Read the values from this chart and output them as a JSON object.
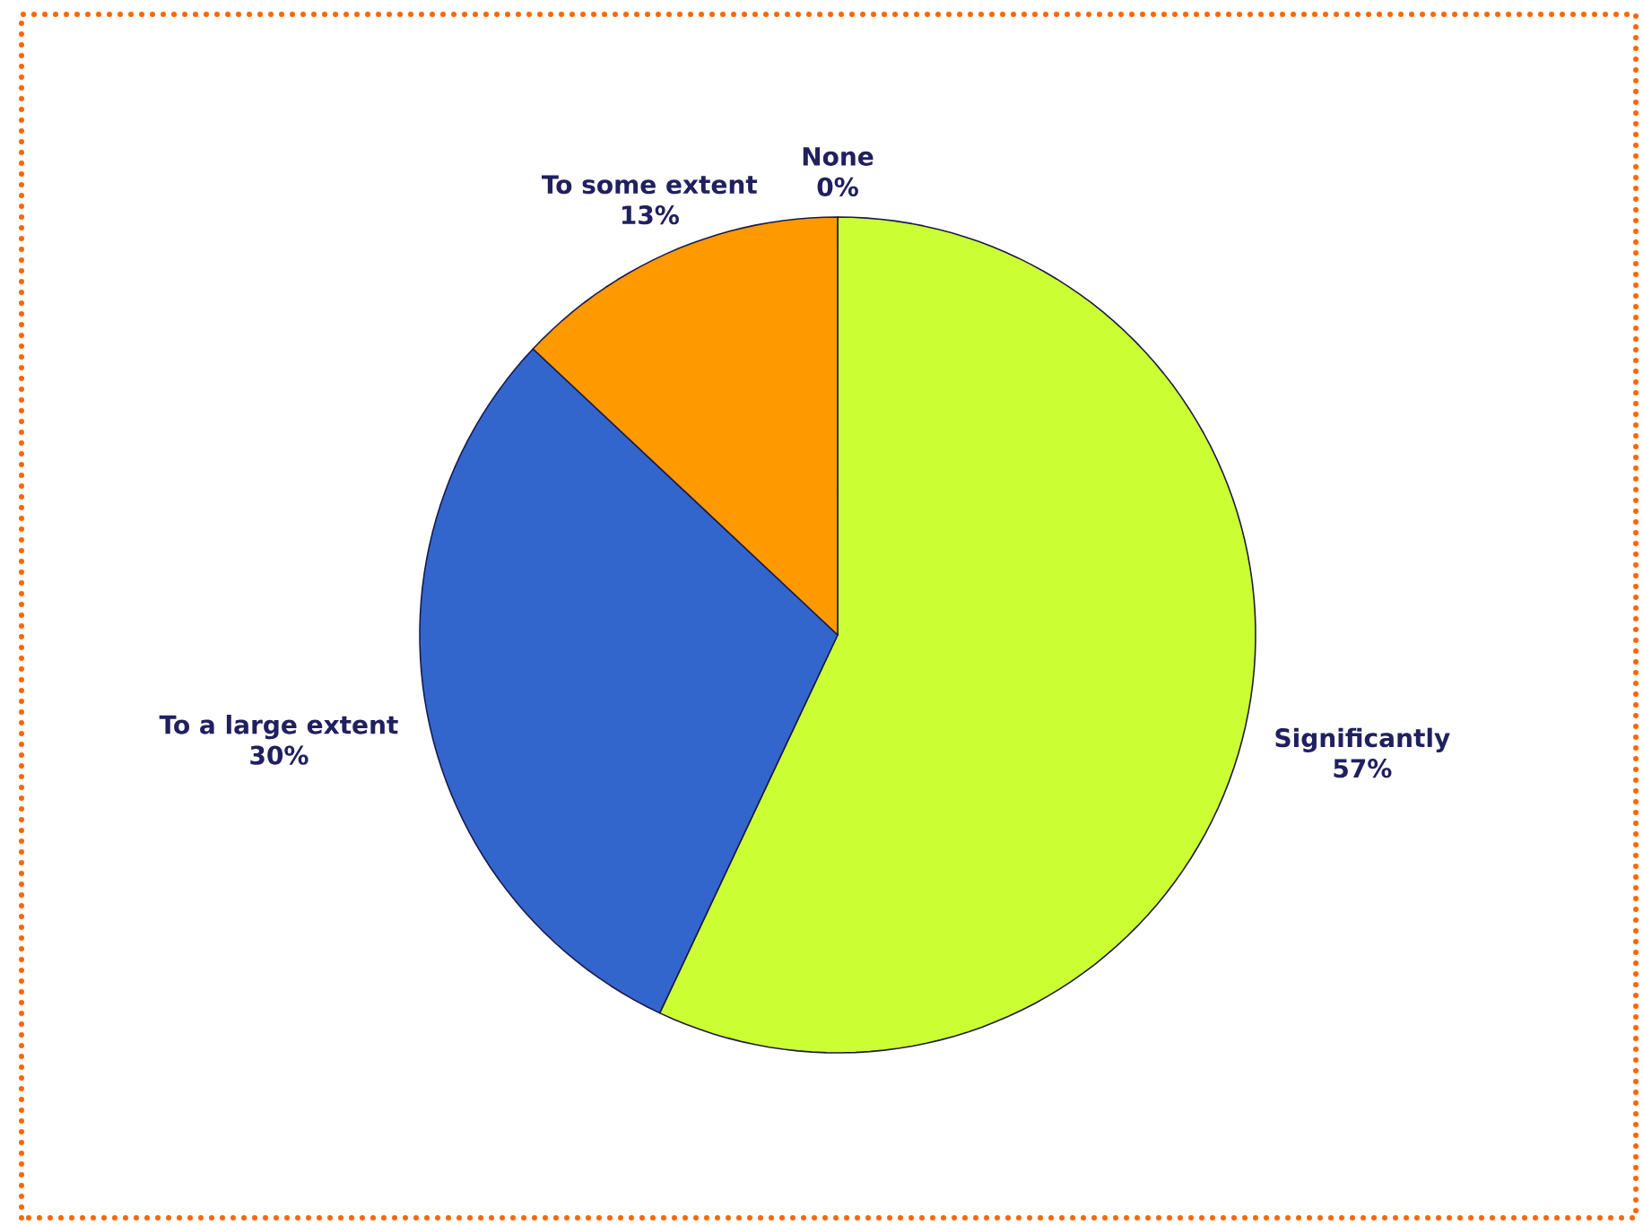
{
  "chart_data": {
    "type": "pie",
    "categories": [
      "Significantly",
      "To a large extent",
      "To some extent",
      "None"
    ],
    "values": [
      57,
      30,
      13,
      0
    ],
    "value_labels": [
      "57%",
      "30%",
      "13%",
      "0%"
    ],
    "colors": [
      "#ccff33",
      "#3366cc",
      "#ff9900",
      null
    ]
  }
}
